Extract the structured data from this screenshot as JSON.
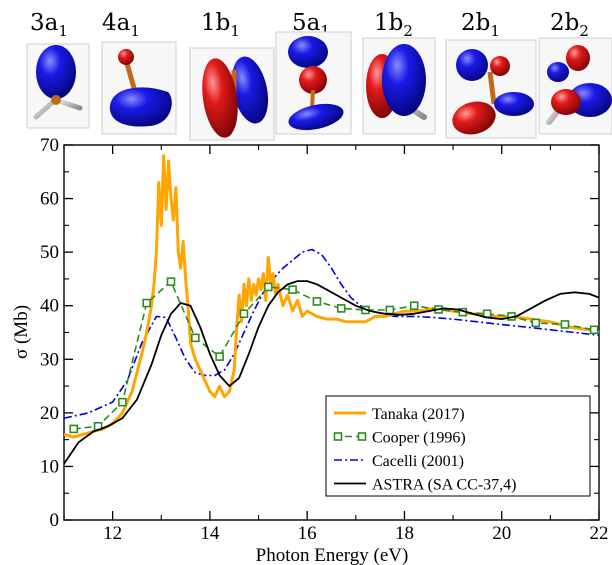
{
  "orbitals": [
    {
      "main": "3a",
      "sub": "1"
    },
    {
      "main": "4a",
      "sub": "1"
    },
    {
      "main": "1b",
      "sub": "1"
    },
    {
      "main": "5a",
      "sub": "1"
    },
    {
      "main": "1b",
      "sub": "2"
    },
    {
      "main": "2b",
      "sub": "1"
    },
    {
      "main": "2b",
      "sub": "2"
    }
  ],
  "colors": {
    "tanaka": "#FFA500",
    "cooper": "#2E8B22",
    "cacelli": "#0000DD",
    "astra": "#000000",
    "lobe_red": "#D81818",
    "lobe_blue": "#1010D0"
  },
  "chart_data": {
    "type": "line",
    "xlabel": "Photon Energy (eV)",
    "ylabel": "σ (Mb)",
    "xlim": [
      11,
      22
    ],
    "ylim": [
      0,
      70
    ],
    "xticks": [
      12,
      14,
      16,
      18,
      20,
      22
    ],
    "yticks": [
      0,
      10,
      20,
      30,
      40,
      50,
      60,
      70
    ],
    "legend_position": "bottom-right",
    "series": [
      {
        "name": "Tanaka (2017)",
        "style": "solid-thick",
        "x": [
          11.0,
          11.2,
          11.4,
          11.6,
          11.8,
          12.0,
          12.2,
          12.4,
          12.6,
          12.7,
          12.8,
          12.85,
          12.9,
          12.95,
          13.0,
          13.05,
          13.1,
          13.15,
          13.2,
          13.25,
          13.3,
          13.35,
          13.4,
          13.45,
          13.5,
          13.55,
          13.6,
          13.7,
          13.8,
          13.9,
          14.0,
          14.1,
          14.2,
          14.3,
          14.4,
          14.5,
          14.55,
          14.6,
          14.65,
          14.7,
          14.75,
          14.8,
          14.85,
          14.9,
          14.95,
          15.0,
          15.05,
          15.1,
          15.15,
          15.2,
          15.25,
          15.3,
          15.35,
          15.4,
          15.5,
          15.6,
          15.7,
          15.8,
          15.9,
          16.0,
          16.2,
          16.4,
          16.6,
          16.8,
          17.0,
          17.2,
          17.4,
          17.6,
          17.8,
          18.0,
          18.3,
          18.6,
          19.0,
          19.4,
          19.8,
          20.2,
          20.6,
          21.0,
          21.4,
          21.8,
          22.0
        ],
        "y": [
          16.0,
          15.5,
          16.0,
          16.5,
          17.0,
          18.0,
          20.0,
          24.0,
          31.0,
          35.0,
          40.0,
          44.0,
          50.0,
          63.0,
          55.0,
          68.0,
          58.0,
          67.0,
          60.0,
          56.0,
          62.0,
          50.0,
          47.0,
          52.0,
          45.0,
          40.0,
          33.0,
          30.0,
          28.0,
          26.0,
          24.0,
          23.0,
          25.0,
          23.0,
          24.0,
          28.0,
          36.0,
          42.0,
          37.0,
          44.0,
          40.0,
          45.0,
          41.0,
          44.0,
          42.0,
          45.0,
          43.0,
          46.0,
          41.0,
          49.0,
          44.0,
          46.0,
          42.0,
          44.0,
          40.0,
          42.0,
          39.0,
          41.0,
          38.0,
          39.0,
          38.0,
          37.5,
          37.5,
          37.0,
          37.0,
          37.0,
          38.0,
          38.0,
          38.5,
          39.0,
          39.0,
          39.5,
          39.0,
          38.5,
          38.0,
          38.0,
          37.5,
          37.0,
          36.0,
          35.5,
          35.0
        ]
      },
      {
        "name": "Cooper (1996)",
        "style": "dashed-square-markers",
        "x": [
          11.2,
          11.7,
          12.2,
          12.7,
          13.2,
          13.7,
          14.2,
          14.7,
          15.2,
          15.7,
          16.2,
          16.7,
          17.2,
          17.7,
          18.2,
          18.7,
          19.2,
          19.7,
          20.2,
          20.7,
          21.3,
          21.9
        ],
        "y": [
          17.0,
          17.5,
          22.0,
          40.5,
          44.5,
          34.0,
          30.5,
          38.5,
          43.5,
          43.0,
          40.8,
          39.5,
          39.2,
          39.2,
          40.0,
          39.3,
          38.8,
          38.5,
          38.0,
          36.8,
          36.5,
          35.5
        ]
      },
      {
        "name": "Cacelli (2001)",
        "style": "dash-dot",
        "x": [
          11.0,
          11.5,
          12.0,
          12.3,
          12.6,
          12.9,
          13.1,
          13.3,
          13.5,
          13.7,
          13.9,
          14.1,
          14.3,
          14.5,
          14.7,
          14.9,
          15.1,
          15.3,
          15.5,
          15.7,
          15.9,
          16.1,
          16.3,
          16.5,
          16.7,
          16.9,
          17.1,
          17.4,
          17.8,
          18.2,
          18.6,
          19.0,
          19.5,
          20.0,
          20.5,
          21.0,
          21.5,
          22.0
        ],
        "y": [
          19.0,
          20.0,
          22.0,
          26.0,
          33.0,
          38.0,
          37.8,
          34.0,
          30.0,
          27.5,
          27.0,
          27.0,
          28.0,
          31.0,
          35.0,
          39.0,
          42.5,
          45.0,
          47.0,
          48.5,
          50.0,
          50.5,
          49.5,
          47.0,
          44.0,
          41.5,
          40.0,
          38.8,
          38.0,
          38.0,
          37.8,
          37.5,
          37.0,
          36.5,
          36.0,
          35.5,
          35.0,
          34.5
        ]
      },
      {
        "name": "ASTRA (SA CC-37,4)",
        "style": "solid-thin",
        "x": [
          11.0,
          11.3,
          11.6,
          11.9,
          12.2,
          12.5,
          12.8,
          13.0,
          13.2,
          13.4,
          13.6,
          13.8,
          14.0,
          14.2,
          14.4,
          14.6,
          14.8,
          15.0,
          15.2,
          15.4,
          15.6,
          15.8,
          16.0,
          16.2,
          16.4,
          16.6,
          16.8,
          17.0,
          17.3,
          17.6,
          17.9,
          18.2,
          18.5,
          18.8,
          19.1,
          19.4,
          19.7,
          20.0,
          20.3,
          20.6,
          20.9,
          21.2,
          21.5,
          21.8,
          22.0
        ],
        "y": [
          10.5,
          14.5,
          16.5,
          17.5,
          19.0,
          22.5,
          29.0,
          34.5,
          38.5,
          40.5,
          40.0,
          36.0,
          31.0,
          27.0,
          25.0,
          26.5,
          31.0,
          36.0,
          40.0,
          42.5,
          44.0,
          44.6,
          44.6,
          44.0,
          43.0,
          42.0,
          41.0,
          40.0,
          39.0,
          38.5,
          38.3,
          38.5,
          39.0,
          39.5,
          39.3,
          38.5,
          37.8,
          37.5,
          38.0,
          39.5,
          41.0,
          42.2,
          42.5,
          42.2,
          41.5
        ]
      }
    ]
  }
}
